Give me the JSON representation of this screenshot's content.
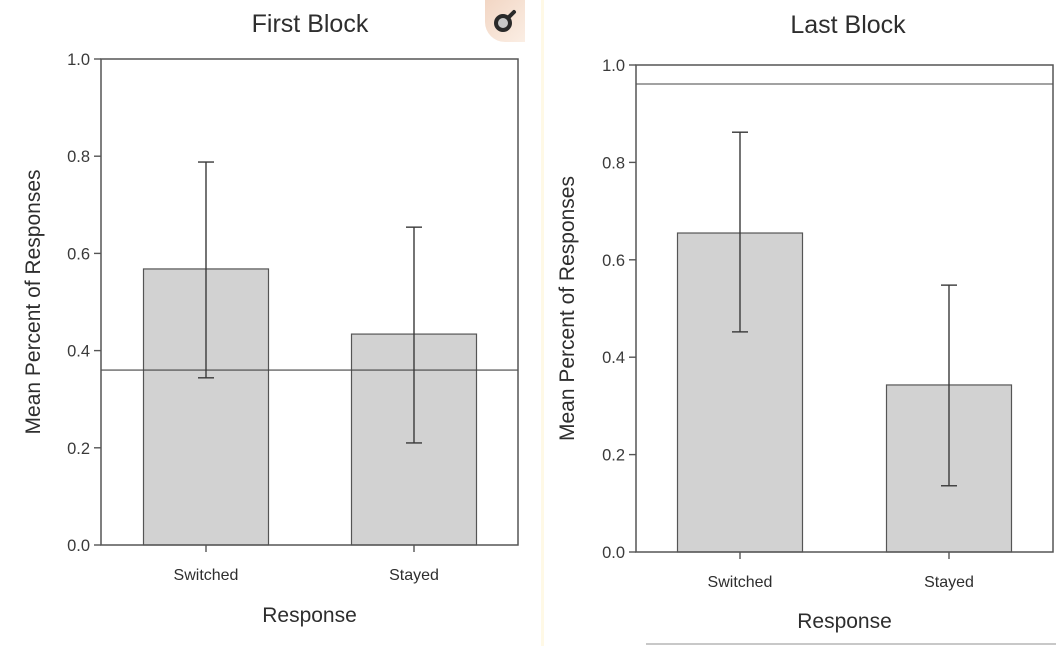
{
  "chart_data": [
    {
      "type": "bar",
      "title": "First Block",
      "xlabel": "Response",
      "ylabel": "Mean Percent of Responses",
      "categories": [
        "Switched",
        "Stayed"
      ],
      "values": [
        0.568,
        0.434
      ],
      "error_upper": [
        0.788,
        0.654
      ],
      "error_lower": [
        0.344,
        0.21
      ],
      "reference_line": 0.36,
      "ylim": [
        0.0,
        1.0
      ],
      "yticks": [
        "0.0",
        "0.2",
        "0.4",
        "0.6",
        "0.8",
        "1.0"
      ],
      "ytick_values": [
        0.0,
        0.2,
        0.4,
        0.6,
        0.8,
        1.0
      ],
      "grid": false,
      "bar_color": "#d2d2d2"
    },
    {
      "type": "bar",
      "title": "Last Block",
      "xlabel": "Response",
      "ylabel": "Mean Percent of Responses",
      "categories": [
        "Switched",
        "Stayed"
      ],
      "values": [
        0.655,
        0.343
      ],
      "error_upper": [
        0.862,
        0.548
      ],
      "error_lower": [
        0.452,
        0.136
      ],
      "reference_line": 0.961,
      "ylim": [
        0.0,
        1.0
      ],
      "yticks": [
        "0.0",
        "0.2",
        "0.4",
        "0.6",
        "0.8",
        "1.0"
      ],
      "ytick_values": [
        0.0,
        0.2,
        0.4,
        0.6,
        0.8,
        1.0
      ],
      "grid": false,
      "bar_color": "#d2d2d2"
    }
  ],
  "toolbar": {
    "zoom_icon": "magnifier-icon"
  }
}
